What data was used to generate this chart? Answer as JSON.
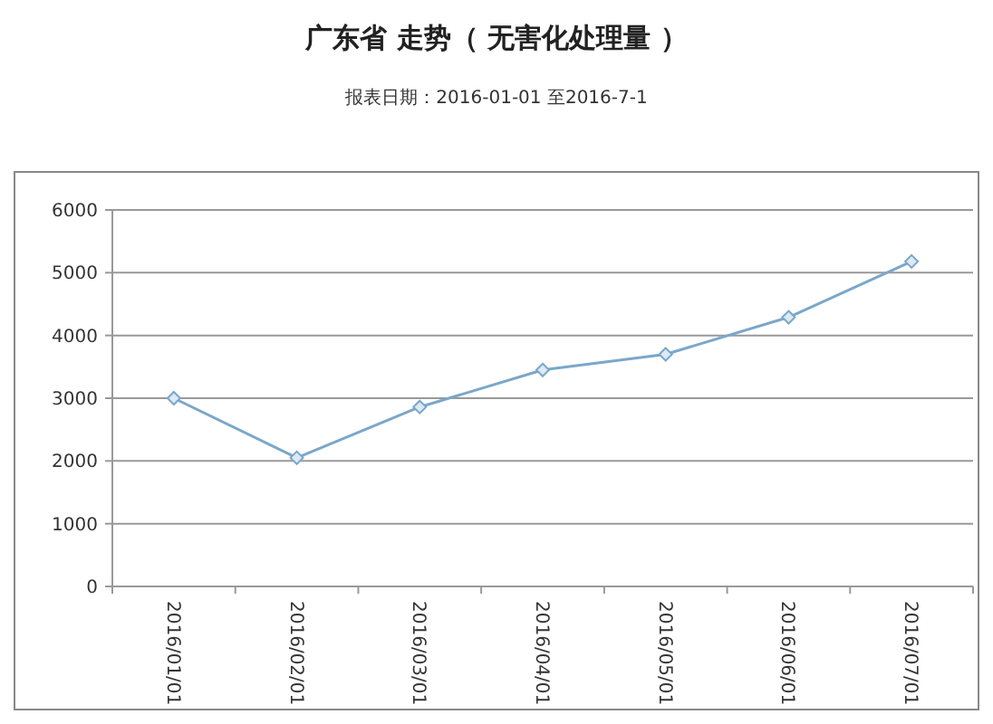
{
  "chart_data": {
    "type": "line",
    "title": "广东省 走势（ 无害化处理量 ）",
    "subtitle": "报表日期：2016-01-01 至2016-7-1",
    "categories": [
      "2016/01/01",
      "2016/02/01",
      "2016/03/01",
      "2016/04/01",
      "2016/05/01",
      "2016/06/01",
      "2016/07/01"
    ],
    "series": [
      {
        "color": "#7ba7c9",
        "values": [
          3000,
          2050,
          2860,
          3450,
          3700,
          4290,
          5180
        ]
      }
    ],
    "ylim": [
      0,
      6000
    ],
    "yticks": [
      0,
      1000,
      2000,
      3000,
      4000,
      5000,
      6000
    ],
    "grid": "y",
    "marker": "diamond"
  }
}
